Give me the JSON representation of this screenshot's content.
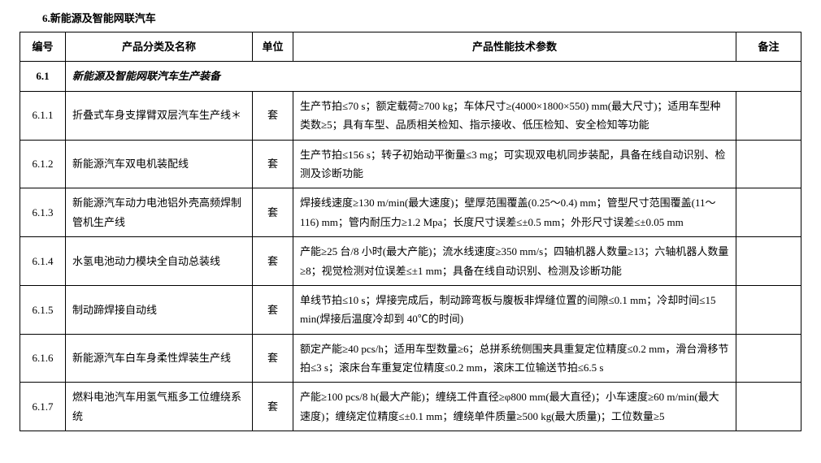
{
  "section_title": "6.新能源及智能网联汽车",
  "columns": {
    "id": "编号",
    "name": "产品分类及名称",
    "unit": "单位",
    "spec": "产品性能技术参数",
    "note": "备注"
  },
  "subsection": {
    "id": "6.1",
    "title": "新能源及智能网联汽车生产装备"
  },
  "rows": [
    {
      "id": "6.1.1",
      "name": "折叠式车身支撑臂双层汽车生产线＊",
      "unit": "套",
      "spec": "生产节拍≤70 s；额定载荷≥700 kg；车体尺寸≥(4000×1800×550) mm(最大尺寸)；适用车型种类数≥5；具有车型、品质相关检知、指示接收、低压检知、安全检知等功能",
      "note": ""
    },
    {
      "id": "6.1.2",
      "name": "新能源汽车双电机装配线",
      "unit": "套",
      "spec": "生产节拍≤156 s；转子初始动平衡量≤3 mg；可实现双电机同步装配，具备在线自动识别、检测及诊断功能",
      "note": ""
    },
    {
      "id": "6.1.3",
      "name": "新能源汽车动力电池铝外壳高频焊制管机生产线",
      "unit": "套",
      "spec": "焊接线速度≥130 m/min(最大速度)；壁厚范围覆盖(0.25～0.4) mm；管型尺寸范围覆盖(11～116) mm；管内耐压力≥1.2 Mpa；长度尺寸误差≤±0.5 mm；外形尺寸误差≤±0.05 mm",
      "note": ""
    },
    {
      "id": "6.1.4",
      "name": "水氢电池动力模块全自动总装线",
      "unit": "套",
      "spec": "产能≥25 台/8 小时(最大产能)；流水线速度≥350 mm/s；四轴机器人数量≥13；六轴机器人数量≥8；视觉检测对位误差≤±1 mm；具备在线自动识别、检测及诊断功能",
      "note": ""
    },
    {
      "id": "6.1.5",
      "name": "制动蹄焊接自动线",
      "unit": "套",
      "spec": "单线节拍≤10 s；焊接完成后，制动蹄弯板与腹板非焊缝位置的间隙≤0.1 mm；冷却时间≤15 min(焊接后温度冷却到 40℃的时间)",
      "note": ""
    },
    {
      "id": "6.1.6",
      "name": "新能源汽车白车身柔性焊装生产线",
      "unit": "套",
      "spec": "额定产能≥40 pcs/h；适用车型数量≥6；总拼系统侧围夹具重复定位精度≤0.2 mm，滑台滑移节拍≤3 s；滚床台车重复定位精度≤0.2 mm，滚床工位输送节拍≤6.5 s",
      "note": ""
    },
    {
      "id": "6.1.7",
      "name": "燃料电池汽车用氢气瓶多工位缠绕系统",
      "unit": "套",
      "spec": "产能≥100 pcs/8 h(最大产能)；缠绕工件直径≥φ800 mm(最大直径)；小车速度≥60 m/min(最大速度)；缠绕定位精度≤±0.1 mm；缠绕单件质量≥500 kg(最大质量)；工位数量≥5",
      "note": ""
    }
  ]
}
